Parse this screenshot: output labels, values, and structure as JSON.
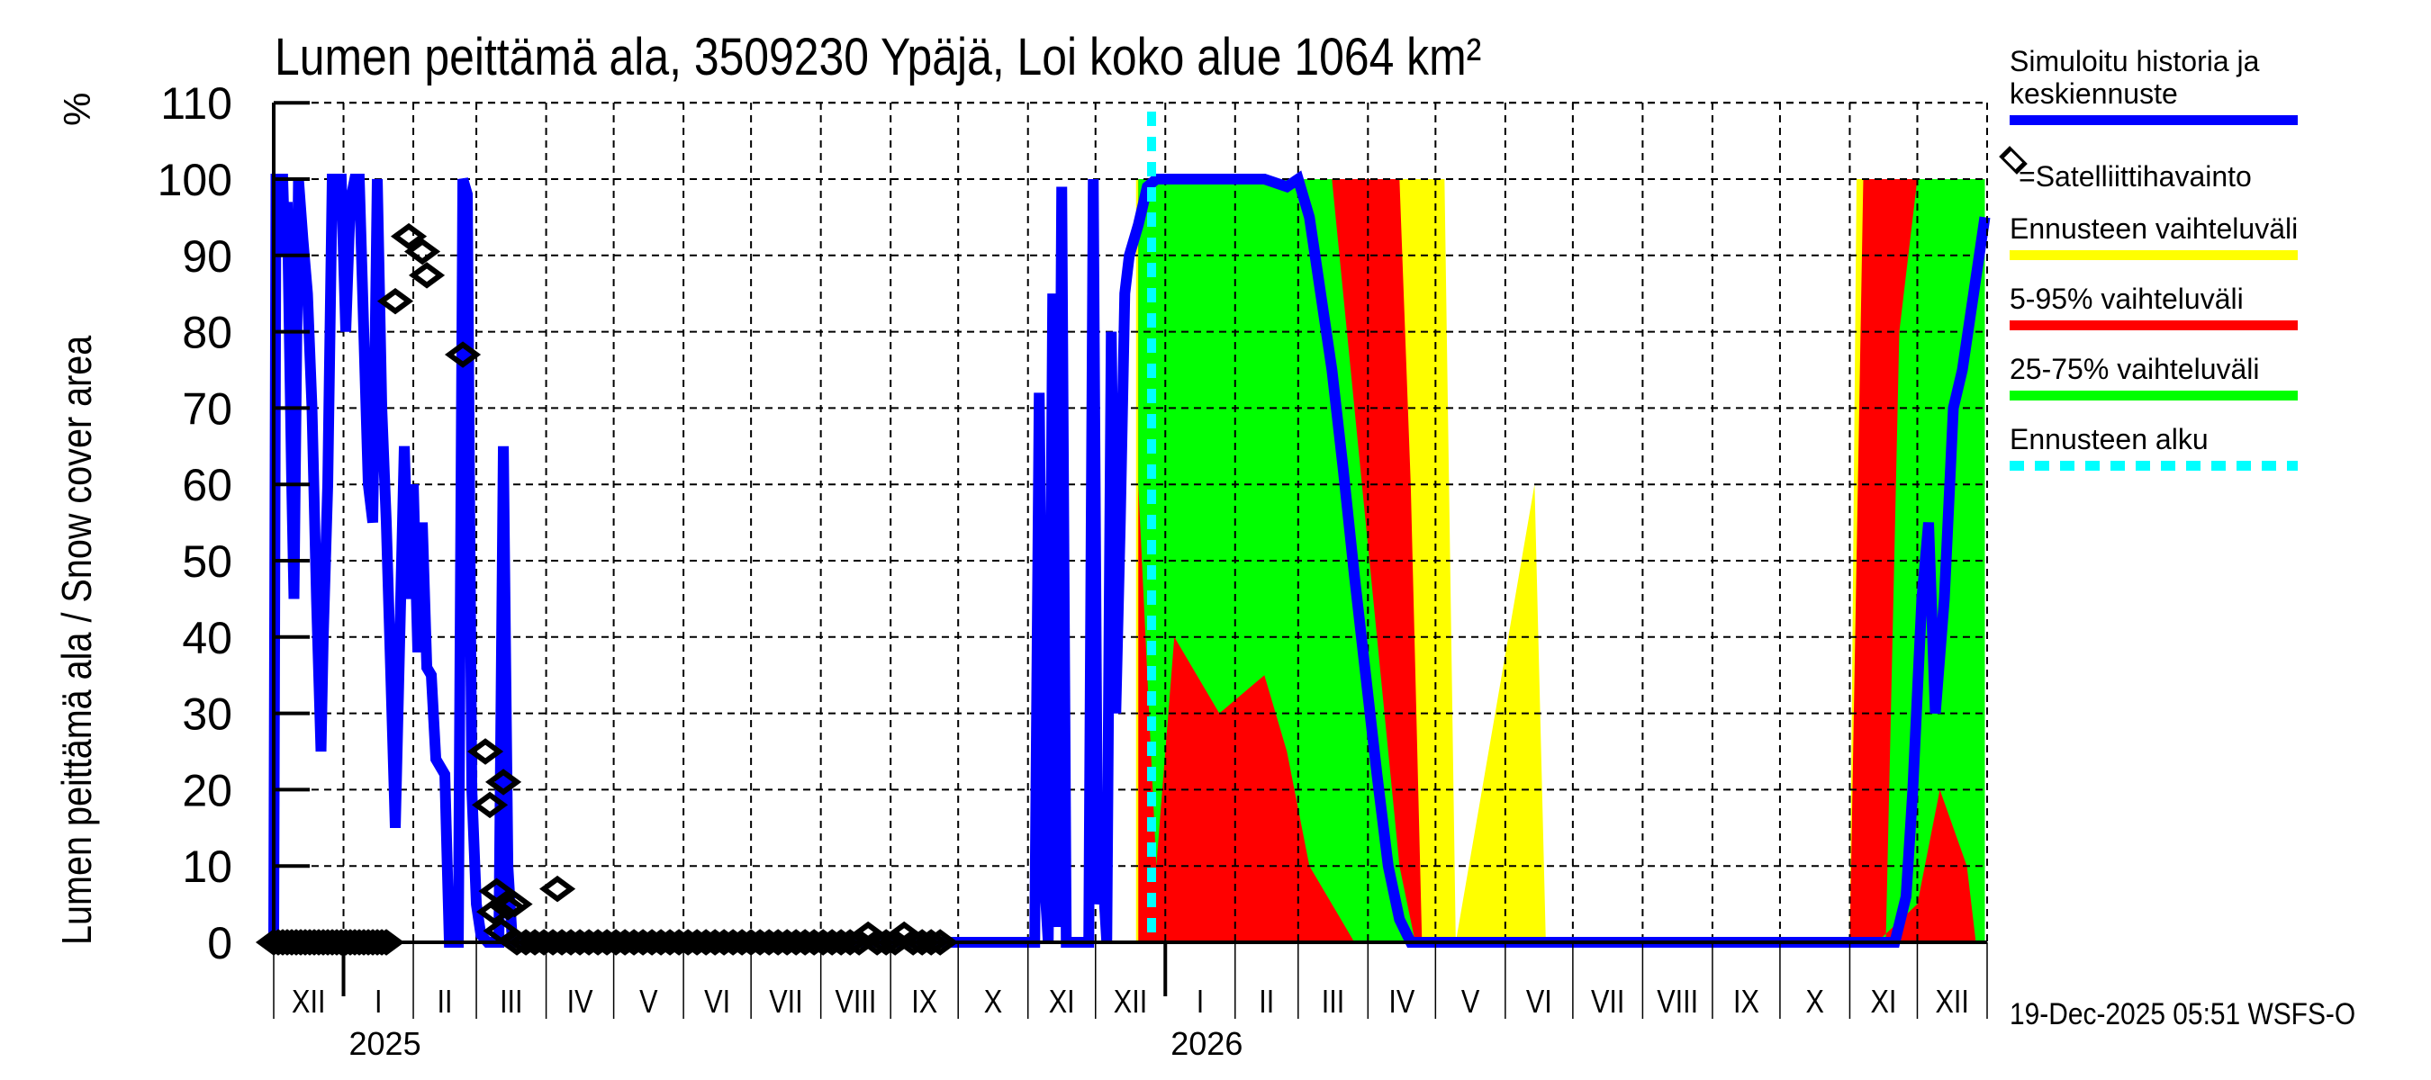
{
  "chart_data": {
    "type": "area",
    "title": "Lumen peittämä ala, 3509230 Ypäjä, Loi koko alue 1064 km²",
    "ylabel": "Lumen peittämä ala / Snow cover area",
    "yunit": "%",
    "xlabel": "",
    "ylim": [
      0,
      110
    ],
    "yticks": [
      0,
      10,
      20,
      30,
      40,
      50,
      60,
      70,
      80,
      90,
      100,
      110
    ],
    "grid": true,
    "legend_position": "right",
    "x_months": [
      "XII",
      "I",
      "II",
      "III",
      "IV",
      "V",
      "VI",
      "VII",
      "VIII",
      "IX",
      "X",
      "XI",
      "XII",
      "I",
      "II",
      "III",
      "IV",
      "V",
      "VI",
      "VII",
      "VIII",
      "IX",
      "X",
      "XI",
      "XII"
    ],
    "x_years": [
      {
        "label": "2025",
        "month_index": 1
      },
      {
        "label": "2026",
        "month_index": 13
      }
    ],
    "x_range": [
      "2024-12-01",
      "2026-12-31"
    ],
    "forecast_start": "2025-12-19",
    "series": [
      {
        "name": "Simuloitu historia ja keskiennuste",
        "color": "#0000ff",
        "style": "line",
        "points_day_value": [
          [
            0,
            0
          ],
          [
            1,
            100
          ],
          [
            4,
            100
          ],
          [
            5,
            90
          ],
          [
            6,
            97
          ],
          [
            8,
            60
          ],
          [
            9,
            45
          ],
          [
            11,
            100
          ],
          [
            13,
            92
          ],
          [
            15,
            85
          ],
          [
            17,
            70
          ],
          [
            19,
            45
          ],
          [
            21,
            25
          ],
          [
            22,
            40
          ],
          [
            24,
            60
          ],
          [
            26,
            100
          ],
          [
            30,
            100
          ],
          [
            32,
            80
          ],
          [
            34,
            97
          ],
          [
            36,
            100
          ],
          [
            38,
            100
          ],
          [
            40,
            80
          ],
          [
            42,
            60
          ],
          [
            44,
            55
          ],
          [
            46,
            100
          ],
          [
            48,
            70
          ],
          [
            50,
            55
          ],
          [
            52,
            35
          ],
          [
            54,
            15
          ],
          [
            56,
            40
          ],
          [
            58,
            65
          ],
          [
            60,
            45
          ],
          [
            62,
            60
          ],
          [
            64,
            38
          ],
          [
            66,
            55
          ],
          [
            68,
            36
          ],
          [
            70,
            35
          ],
          [
            72,
            24
          ],
          [
            76,
            22
          ],
          [
            78,
            0
          ],
          [
            82,
            0
          ],
          [
            84,
            100
          ],
          [
            86,
            98
          ],
          [
            88,
            20
          ],
          [
            90,
            5
          ],
          [
            92,
            1
          ],
          [
            95,
            0
          ],
          [
            98,
            0
          ],
          [
            100,
            0
          ],
          [
            102,
            65
          ],
          [
            104,
            10
          ],
          [
            106,
            0
          ],
          [
            140,
            0
          ],
          [
            200,
            0
          ],
          [
            290,
            0
          ],
          [
            338,
            0
          ],
          [
            340,
            72
          ],
          [
            342,
            10
          ],
          [
            344,
            0
          ],
          [
            346,
            85
          ],
          [
            348,
            2
          ],
          [
            350,
            99
          ],
          [
            352,
            0
          ],
          [
            362,
            0
          ],
          [
            364,
            100
          ],
          [
            366,
            5
          ],
          [
            368,
            10
          ],
          [
            370,
            0
          ],
          [
            372,
            80
          ],
          [
            374,
            30
          ],
          [
            376,
            55
          ],
          [
            378,
            85
          ],
          [
            380,
            90
          ],
          [
            384,
            94
          ],
          [
            388,
            99
          ],
          [
            392,
            100
          ],
          [
            420,
            100
          ],
          [
            440,
            100
          ],
          [
            450,
            99
          ],
          [
            455,
            100
          ],
          [
            460,
            95
          ],
          [
            465,
            85
          ],
          [
            470,
            75
          ],
          [
            475,
            62
          ],
          [
            480,
            48
          ],
          [
            485,
            35
          ],
          [
            490,
            22
          ],
          [
            495,
            10
          ],
          [
            500,
            3
          ],
          [
            505,
            0
          ],
          [
            520,
            0
          ],
          [
            600,
            0
          ],
          [
            700,
            0
          ],
          [
            720,
            0
          ],
          [
            725,
            6
          ],
          [
            728,
            20
          ],
          [
            732,
            45
          ],
          [
            735,
            55
          ],
          [
            738,
            30
          ],
          [
            742,
            45
          ],
          [
            746,
            70
          ],
          [
            750,
            75
          ],
          [
            755,
            85
          ],
          [
            760,
            95
          ]
        ]
      },
      {
        "name": "Ennusteen vaihteluväli",
        "color": "#ffff00",
        "style": "band",
        "description": "min-max range of forecast ensemble; 0-100% from Dec 2025 through May 2026 and Oct-Dec 2026"
      },
      {
        "name": "5-95% vaihteluväli",
        "color": "#ff0000",
        "style": "band"
      },
      {
        "name": "25-75% vaihteluväli",
        "color": "#00ff00",
        "style": "band"
      },
      {
        "name": "Ennusteen alku",
        "color": "#00ffff",
        "style": "dashed-vertical"
      }
    ],
    "bands": {
      "yellow_upper": [
        [
          383,
          100
        ],
        [
          400,
          100
        ],
        [
          500,
          100
        ],
        [
          520,
          100
        ],
        [
          525,
          0
        ],
        [
          560,
          60
        ],
        [
          565,
          0
        ],
        [
          700,
          0
        ],
        [
          703,
          100
        ],
        [
          760,
          100
        ]
      ],
      "yellow_lower": [
        [
          383,
          0
        ],
        [
          760,
          0
        ]
      ],
      "red_upper": [
        [
          384,
          100
        ],
        [
          500,
          100
        ],
        [
          505,
          60
        ],
        [
          510,
          0
        ],
        [
          700,
          0
        ],
        [
          706,
          100
        ],
        [
          760,
          100
        ]
      ],
      "red_lower": [
        [
          384,
          0
        ],
        [
          760,
          0
        ]
      ],
      "green_upper": [
        [
          384,
          100
        ],
        [
          470,
          100
        ],
        [
          480,
          70
        ],
        [
          490,
          40
        ],
        [
          500,
          10
        ],
        [
          507,
          0
        ],
        [
          716,
          0
        ],
        [
          722,
          80
        ],
        [
          730,
          100
        ],
        [
          760,
          100
        ]
      ],
      "green_lower": [
        [
          384,
          60
        ],
        [
          392,
          10
        ],
        [
          400,
          40
        ],
        [
          420,
          30
        ],
        [
          440,
          35
        ],
        [
          450,
          25
        ],
        [
          460,
          10
        ],
        [
          470,
          5
        ],
        [
          480,
          0
        ],
        [
          712,
          0
        ],
        [
          730,
          5
        ],
        [
          740,
          20
        ],
        [
          752,
          10
        ],
        [
          756,
          0
        ],
        [
          760,
          0
        ]
      ]
    },
    "satellite_observations": [
      [
        0,
        0
      ],
      [
        2,
        0
      ],
      [
        4,
        0
      ],
      [
        6,
        0
      ],
      [
        8,
        0
      ],
      [
        10,
        0
      ],
      [
        12,
        0
      ],
      [
        14,
        0
      ],
      [
        16,
        0
      ],
      [
        18,
        0
      ],
      [
        20,
        0
      ],
      [
        22,
        0
      ],
      [
        24,
        0
      ],
      [
        26,
        0
      ],
      [
        28,
        0
      ],
      [
        30,
        0
      ],
      [
        32,
        0
      ],
      [
        34,
        0
      ],
      [
        36,
        0
      ],
      [
        38,
        0
      ],
      [
        40,
        0
      ],
      [
        42,
        0
      ],
      [
        44,
        0
      ],
      [
        46,
        0
      ],
      [
        48,
        0
      ],
      [
        50,
        0
      ],
      [
        54,
        84
      ],
      [
        60,
        92.5
      ],
      [
        66,
        90.5
      ],
      [
        68,
        87.4
      ],
      [
        84,
        77
      ],
      [
        94,
        25
      ],
      [
        96,
        18
      ],
      [
        102,
        21
      ],
      [
        99,
        6.7
      ],
      [
        98,
        4
      ],
      [
        101,
        1.5
      ],
      [
        104,
        4.6
      ],
      [
        107,
        5
      ],
      [
        126,
        7
      ],
      [
        108,
        0
      ],
      [
        112,
        0
      ],
      [
        116,
        0
      ],
      [
        120,
        0
      ],
      [
        124,
        0
      ],
      [
        128,
        0
      ],
      [
        132,
        0
      ],
      [
        136,
        0
      ],
      [
        140,
        0
      ],
      [
        144,
        0
      ],
      [
        148,
        0
      ],
      [
        152,
        0
      ],
      [
        156,
        0
      ],
      [
        160,
        0
      ],
      [
        164,
        0
      ],
      [
        168,
        0
      ],
      [
        172,
        0
      ],
      [
        176,
        0
      ],
      [
        180,
        0
      ],
      [
        184,
        0
      ],
      [
        188,
        0
      ],
      [
        192,
        0
      ],
      [
        196,
        0
      ],
      [
        200,
        0
      ],
      [
        204,
        0
      ],
      [
        208,
        0
      ],
      [
        212,
        0
      ],
      [
        216,
        0
      ],
      [
        220,
        0
      ],
      [
        224,
        0
      ],
      [
        228,
        0
      ],
      [
        232,
        0
      ],
      [
        236,
        0
      ],
      [
        240,
        0
      ],
      [
        244,
        0
      ],
      [
        248,
        0
      ],
      [
        252,
        0
      ],
      [
        256,
        0
      ],
      [
        260,
        0
      ],
      [
        264,
        1
      ],
      [
        268,
        0
      ],
      [
        272,
        0
      ],
      [
        276,
        0
      ],
      [
        280,
        1
      ],
      [
        284,
        0
      ],
      [
        288,
        0
      ],
      [
        292,
        0
      ],
      [
        296,
        0
      ]
    ]
  },
  "legend": {
    "items": [
      {
        "label": "Simuloitu historia ja keskiennuste",
        "color": "#0000ff",
        "kind": "line"
      },
      {
        "label": "=Satelliittihavainto",
        "color": "#000000",
        "kind": "diamond"
      },
      {
        "label": "Ennusteen vaihteluväli",
        "color": "#ffff00",
        "kind": "line"
      },
      {
        "label": "5-95% vaihteluväli",
        "color": "#ff0000",
        "kind": "line"
      },
      {
        "label": "25-75% vaihteluväli",
        "color": "#00ff00",
        "kind": "line"
      },
      {
        "label": "Ennusteen alku",
        "color": "#00ffff",
        "kind": "dashed"
      }
    ]
  },
  "footer": {
    "timestamp": "19-Dec-2025 05:51 WSFS-O"
  }
}
